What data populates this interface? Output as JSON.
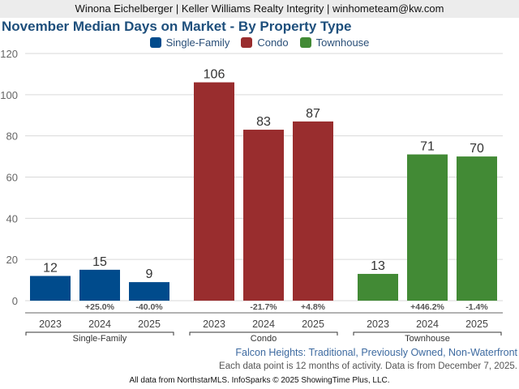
{
  "header": {
    "agent_line": "Winona Eichelberger | Keller Williams Realty Integrity | winhometeam@kw.com"
  },
  "footer": {
    "subtitle": "Falcon Heights: Traditional, Previously Owned, Non-Waterfront",
    "note": "Each data point is 12 months of activity. Data is from December 7, 2025.",
    "credit": "All data from NorthstarMLS. InfoSparks © 2025 ShowingTime Plus, LLC."
  },
  "chart_data": {
    "type": "bar",
    "title": "November Median Days on Market - By Property Type",
    "xlabel": "",
    "ylabel": "",
    "ylim": [
      0,
      120
    ],
    "yticks": [
      0,
      20,
      40,
      60,
      80,
      100,
      120
    ],
    "grid": true,
    "legend_position": "top-center",
    "categories": [
      "2023",
      "2024",
      "2025"
    ],
    "series": [
      {
        "name": "Single-Family",
        "color": "#004b8c",
        "values": [
          12,
          15,
          9
        ],
        "changes": [
          "",
          "+25.0%",
          "-40.0%"
        ]
      },
      {
        "name": "Condo",
        "color": "#992d2e",
        "values": [
          106,
          83,
          87
        ],
        "changes": [
          "",
          "-21.7%",
          "+4.8%"
        ]
      },
      {
        "name": "Townhouse",
        "color": "#428a35",
        "values": [
          13,
          71,
          70
        ],
        "changes": [
          "",
          "+446.2%",
          "-1.4%"
        ]
      }
    ]
  }
}
